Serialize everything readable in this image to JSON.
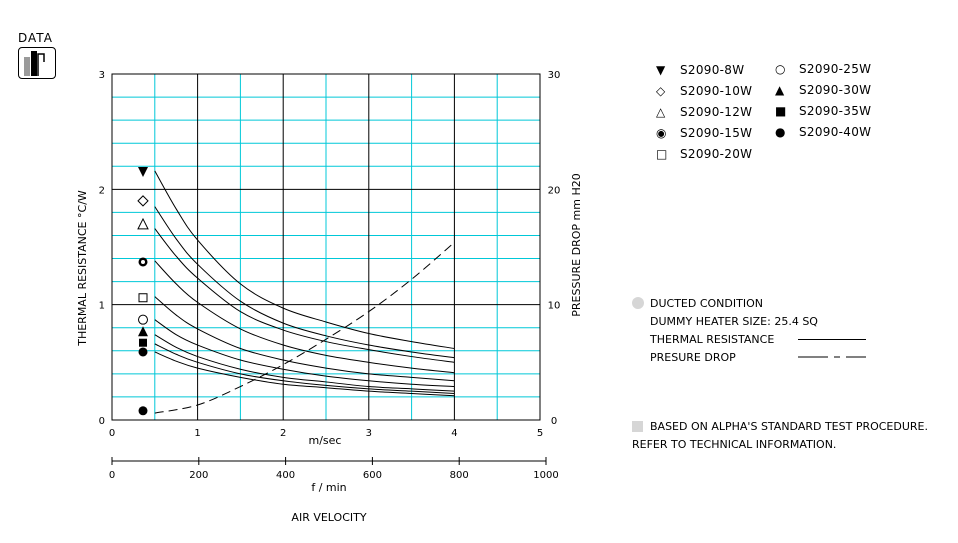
{
  "badge": {
    "label": "DATA",
    "icon": "bar-chart-icon"
  },
  "chart_data": {
    "type": "line",
    "left_axis": {
      "label": "THERMAL RESISTANCE  °C/W",
      "ticks": [
        "0",
        "1",
        "2",
        "3"
      ],
      "ylim": [
        0,
        3
      ]
    },
    "right_axis": {
      "label": "PRESSURE DROP  mm H20",
      "ticks": [
        "0",
        "10",
        "20",
        "30"
      ],
      "ylim": [
        0,
        30
      ]
    },
    "x_axis_ms": {
      "label": "m/sec",
      "ticks": [
        "0",
        "1",
        "2",
        "3",
        "4",
        "5"
      ],
      "xlim": [
        0,
        5
      ]
    },
    "x_axis_fmin": {
      "label": "f / min",
      "ticks": [
        "0",
        "200",
        "400",
        "600",
        "800",
        "1000"
      ],
      "xlim": [
        0,
        1000
      ]
    },
    "xlabel": "AIR VELOCITY",
    "grid": true,
    "series": [
      {
        "name": "S2090-8W",
        "symbol": "triangle-down-filled",
        "x": [
          0.5,
          0.75,
          1,
          1.5,
          2,
          2.5,
          3,
          3.5,
          4
        ],
        "y": [
          2.16,
          1.83,
          1.56,
          1.18,
          0.97,
          0.85,
          0.75,
          0.68,
          0.62
        ]
      },
      {
        "name": "S2090-10W",
        "symbol": "diamond-open",
        "x": [
          0.5,
          0.75,
          1,
          1.5,
          2,
          2.5,
          3,
          3.5,
          4
        ],
        "y": [
          1.85,
          1.57,
          1.35,
          1.03,
          0.84,
          0.73,
          0.65,
          0.59,
          0.54
        ]
      },
      {
        "name": "S2090-12W",
        "symbol": "triangle-up-open",
        "x": [
          0.5,
          0.75,
          1,
          1.5,
          2,
          2.5,
          3,
          3.5,
          4
        ],
        "y": [
          1.66,
          1.42,
          1.23,
          0.94,
          0.78,
          0.68,
          0.61,
          0.55,
          0.5
        ]
      },
      {
        "name": "S2090-15W",
        "symbol": "circle-bullseye",
        "x": [
          0.5,
          0.75,
          1,
          1.5,
          2,
          2.5,
          3,
          3.5,
          4
        ],
        "y": [
          1.38,
          1.18,
          1.02,
          0.79,
          0.65,
          0.56,
          0.5,
          0.45,
          0.41
        ]
      },
      {
        "name": "S2090-20W",
        "symbol": "square-open",
        "x": [
          0.5,
          0.75,
          1,
          1.5,
          2,
          2.5,
          3,
          3.5,
          4
        ],
        "y": [
          1.07,
          0.91,
          0.79,
          0.62,
          0.52,
          0.45,
          0.4,
          0.37,
          0.34
        ]
      },
      {
        "name": "S2090-25W",
        "symbol": "circle-open",
        "x": [
          0.5,
          0.75,
          1,
          1.5,
          2,
          2.5,
          3,
          3.5,
          4
        ],
        "y": [
          0.87,
          0.74,
          0.65,
          0.52,
          0.44,
          0.38,
          0.34,
          0.31,
          0.29
        ]
      },
      {
        "name": "S2090-30W",
        "symbol": "triangle-up-filled",
        "x": [
          0.5,
          0.75,
          1,
          1.5,
          2,
          2.5,
          3,
          3.5,
          4
        ],
        "y": [
          0.74,
          0.63,
          0.55,
          0.44,
          0.37,
          0.33,
          0.29,
          0.27,
          0.25
        ]
      },
      {
        "name": "S2090-35W",
        "symbol": "square-filled",
        "x": [
          0.5,
          0.75,
          1,
          1.5,
          2,
          2.5,
          3,
          3.5,
          4
        ],
        "y": [
          0.66,
          0.57,
          0.5,
          0.4,
          0.34,
          0.3,
          0.27,
          0.25,
          0.23
        ]
      },
      {
        "name": "S2090-40W",
        "symbol": "circle-filled",
        "x": [
          0.5,
          0.75,
          1,
          1.5,
          2,
          2.5,
          3,
          3.5,
          4
        ],
        "y": [
          0.59,
          0.51,
          0.45,
          0.37,
          0.31,
          0.28,
          0.25,
          0.23,
          0.21
        ]
      }
    ],
    "pressure_drop": {
      "name": "PRESURE DROP",
      "x": [
        0.5,
        1,
        1.5,
        2,
        2.5,
        3,
        3.5,
        4
      ],
      "y": [
        0.6,
        1.3,
        2.9,
        4.8,
        7.0,
        9.4,
        12.2,
        15.4
      ]
    },
    "marker_values": {
      "S2090-8W": 2.15,
      "S2090-10W": 1.9,
      "S2090-12W": 1.7,
      "S2090-15W": 1.37,
      "S2090-20W": 1.06,
      "S2090-25W": 0.87,
      "S2090-30W": 0.77,
      "S2090-35W": 0.67,
      "S2090-40W": 0.59,
      "pressure": 0.08
    }
  },
  "legend": [
    {
      "label": "S2090-8W",
      "glyph": "▼"
    },
    {
      "label": "S2090-10W",
      "glyph": "◇"
    },
    {
      "label": "S2090-12W",
      "glyph": "△"
    },
    {
      "label": "S2090-15W",
      "glyph": "◉"
    },
    {
      "label": "S2090-20W",
      "glyph": "□"
    },
    {
      "label": "S2090-25W",
      "glyph": "○"
    },
    {
      "label": "S2090-30W",
      "glyph": "▲"
    },
    {
      "label": "S2090-35W",
      "glyph": "■"
    },
    {
      "label": "S2090-40W",
      "glyph": "●"
    }
  ],
  "notes": {
    "condition": "DUCTED CONDITION",
    "heater": "DUMMY HEATER SIZE: 25.4 SQ",
    "thermal": "THERMAL RESISTANCE",
    "pressure": "PRESURE DROP",
    "based": "BASED ON ALPHA'S STANDARD TEST PROCEDURE.",
    "refer": "REFER TO TECHNICAL INFORMATION."
  },
  "colors": {
    "grid_major": "#000000",
    "grid_minor": "#00c8d8",
    "curve": "#000000",
    "bullet": "#d6d6d6"
  }
}
